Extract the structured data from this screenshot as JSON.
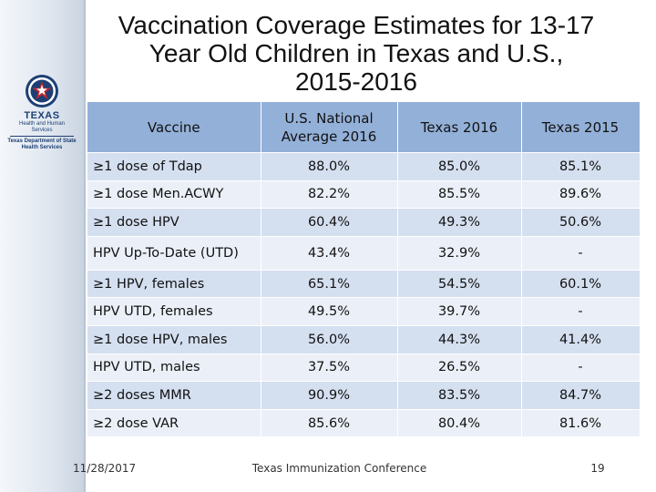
{
  "slide": {
    "title_lines": [
      "Vaccination Coverage Estimates for 13-17",
      "Year Old Children in Texas and U.S.,",
      "2015-2016"
    ]
  },
  "logo": {
    "main": "TEXAS",
    "sub1": "Health and Human",
    "sub2": "Services",
    "sub3": "Texas Department of State",
    "sub4": "Health Services"
  },
  "table": {
    "headers": [
      "Vaccine",
      "U.S. National Average 2016",
      "Texas 2016",
      "Texas 2015"
    ],
    "rows": [
      [
        "≥1 dose of Tdap",
        "88.0%",
        "85.0%",
        "85.1%"
      ],
      [
        "≥1 dose Men.ACWY",
        "82.2%",
        "85.5%",
        "89.6%"
      ],
      [
        "≥1 dose HPV",
        "60.4%",
        "49.3%",
        "50.6%"
      ],
      [
        "HPV Up-To-Date (UTD)",
        "43.4%",
        "32.9%",
        "-"
      ],
      [
        "≥1 HPV, females",
        "65.1%",
        "54.5%",
        "60.1%"
      ],
      [
        "HPV UTD, females",
        "49.5%",
        "39.7%",
        "-"
      ],
      [
        "≥1 dose HPV, males",
        "56.0%",
        "44.3%",
        "41.4%"
      ],
      [
        "HPV UTD, males",
        "37.5%",
        "26.5%",
        "-"
      ],
      [
        "≥2 doses MMR",
        "90.9%",
        "83.5%",
        "84.7%"
      ],
      [
        "≥2 dose VAR",
        "85.6%",
        "80.4%",
        "81.6%"
      ]
    ]
  },
  "footer": {
    "date": "11/28/2017",
    "center": "Texas Immunization Conference",
    "page": "19"
  },
  "colors": {
    "header_fill": "#93b0d8",
    "row_dark": "#d4dff0",
    "row_light": "#ebf0f8",
    "brand_blue": "#1d3f73",
    "star_red": "#c0272d"
  }
}
